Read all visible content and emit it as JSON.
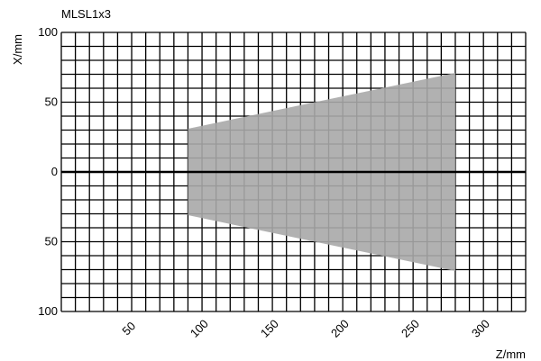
{
  "chart_data": {
    "type": "area",
    "title": "MLSL1x3",
    "xlabel": "Z/mm",
    "ylabel": "X/mm",
    "xlim": [
      0,
      330
    ],
    "ylim": [
      -100,
      100
    ],
    "grid": true,
    "x_ticks": [
      50,
      100,
      150,
      200,
      250,
      300
    ],
    "x_tick_labels": [
      "50",
      "100",
      "150",
      "200",
      "250",
      "300"
    ],
    "y_ticks": [
      100,
      50,
      0,
      -50,
      -100
    ],
    "y_tick_labels": [
      "100",
      "50",
      "0",
      "50",
      "100"
    ],
    "series": [
      {
        "color": "#a9a9a9",
        "x": [
          90,
          280,
          280,
          90
        ],
        "y": [
          31,
          71,
          -71,
          -31
        ]
      }
    ]
  }
}
